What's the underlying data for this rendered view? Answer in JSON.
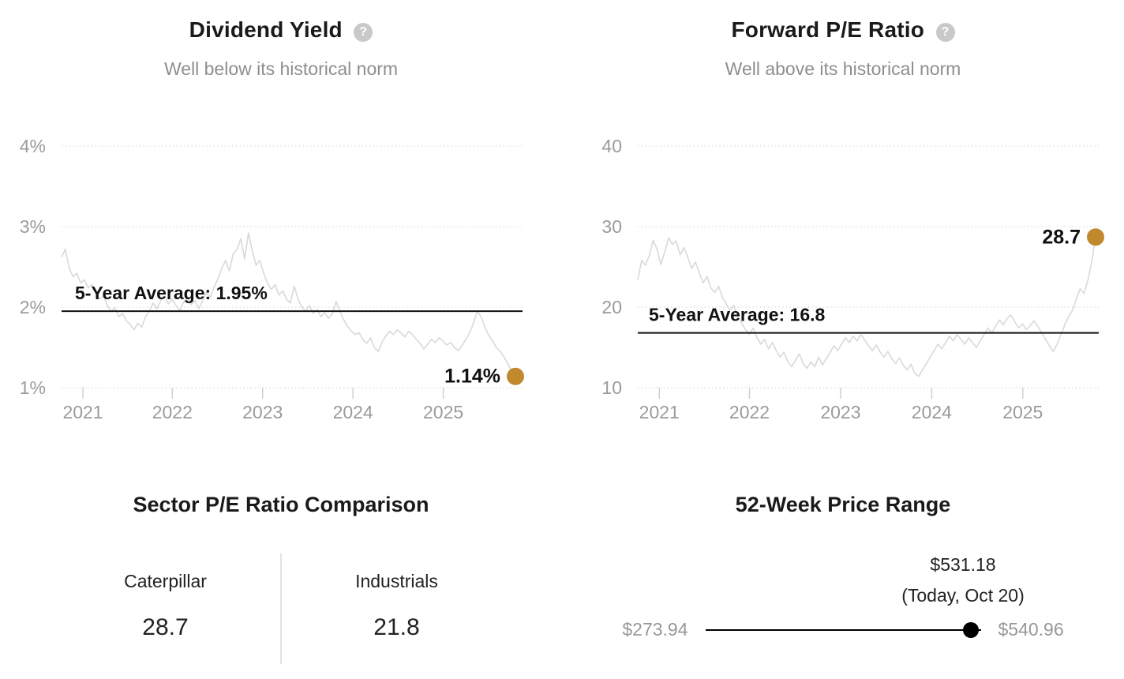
{
  "colors": {
    "accent_gold": "#c0892e",
    "title_text": "#1a1a1a",
    "muted_text": "#8e8e8e",
    "axis_text": "#9b9b9b",
    "sparkline": "#d9d9d9",
    "grid_dots": "#d6d6d6",
    "average_line": "#111111",
    "range_line": "#000000"
  },
  "icons": {
    "question_mark": "?"
  },
  "chart_data": [
    {
      "type": "line",
      "title": "Dividend Yield",
      "subtitle": "Well below its historical norm",
      "help_icon": "question-mark-icon",
      "unit": "percent",
      "x_range_dates": [
        "2020-10",
        "2025-10-20"
      ],
      "x_tick_labels": [
        "2021",
        "2022",
        "2023",
        "2024",
        "2025"
      ],
      "y_tick_labels": [
        "4%",
        "3%",
        "2%",
        "1%"
      ],
      "y_tick_values": [
        4,
        3,
        2,
        1
      ],
      "ylim": [
        0.4,
        4.3
      ],
      "grid": "dotted-horizontal",
      "legend_position": "none",
      "average": {
        "label": "5-Year Average: 1.95%",
        "value": 1.95
      },
      "latest": {
        "label": "1.14%",
        "value": 1.14
      },
      "values": [
        2.62,
        2.72,
        2.48,
        2.38,
        2.42,
        2.3,
        2.34,
        2.24,
        2.28,
        2.18,
        2.1,
        2.14,
        2.02,
        1.95,
        1.99,
        1.88,
        1.92,
        1.83,
        1.78,
        1.72,
        1.8,
        1.75,
        1.88,
        1.95,
        2.05,
        1.98,
        2.08,
        2.14,
        2.04,
        2.1,
        2.02,
        1.96,
        2.06,
        2.12,
        2.03,
        2.08,
        1.98,
        2.08,
        2.18,
        2.12,
        2.25,
        2.35,
        2.48,
        2.58,
        2.45,
        2.66,
        2.72,
        2.85,
        2.6,
        2.92,
        2.7,
        2.52,
        2.58,
        2.42,
        2.3,
        2.22,
        2.28,
        2.15,
        2.2,
        2.1,
        2.05,
        2.26,
        2.1,
        2.0,
        1.95,
        2.02,
        1.92,
        1.97,
        1.88,
        1.93,
        1.86,
        1.92,
        2.07,
        1.95,
        1.84,
        1.76,
        1.7,
        1.66,
        1.68,
        1.6,
        1.55,
        1.62,
        1.5,
        1.45,
        1.56,
        1.64,
        1.7,
        1.66,
        1.72,
        1.68,
        1.63,
        1.7,
        1.66,
        1.6,
        1.55,
        1.48,
        1.54,
        1.6,
        1.56,
        1.62,
        1.58,
        1.53,
        1.56,
        1.5,
        1.46,
        1.52,
        1.6,
        1.68,
        1.8,
        1.95,
        1.88,
        1.75,
        1.65,
        1.58,
        1.5,
        1.45,
        1.38,
        1.3,
        1.2,
        1.14
      ]
    },
    {
      "type": "line",
      "title": "Forward P/E Ratio",
      "subtitle": "Well above its historical norm",
      "help_icon": "question-mark-icon",
      "unit": "ratio",
      "x_range_dates": [
        "2020-10",
        "2025-10-20"
      ],
      "x_tick_labels": [
        "2021",
        "2022",
        "2023",
        "2024",
        "2025"
      ],
      "y_tick_labels": [
        "40",
        "30",
        "20",
        "10"
      ],
      "y_tick_values": [
        40,
        30,
        20,
        10
      ],
      "ylim": [
        4,
        42
      ],
      "grid": "dotted-horizontal",
      "legend_position": "none",
      "average": {
        "label": "5-Year Average: 16.8",
        "value": 16.8
      },
      "latest": {
        "label": "28.7",
        "value": 28.7
      },
      "values": [
        23.4,
        25.8,
        25.2,
        26.4,
        28.3,
        27.2,
        25.3,
        26.8,
        28.6,
        27.8,
        28.2,
        26.5,
        27.4,
        26.2,
        24.8,
        25.6,
        24.2,
        23.0,
        23.8,
        22.4,
        21.8,
        22.6,
        21.2,
        20.4,
        19.6,
        20.2,
        18.8,
        18.0,
        17.2,
        16.6,
        17.4,
        16.2,
        15.4,
        16.0,
        14.8,
        15.6,
        14.6,
        13.8,
        14.4,
        13.2,
        12.6,
        13.4,
        14.2,
        13.0,
        12.4,
        13.2,
        12.6,
        13.8,
        12.8,
        13.6,
        14.4,
        15.2,
        14.6,
        15.4,
        16.2,
        15.6,
        16.4,
        15.8,
        16.6,
        15.9,
        15.2,
        14.6,
        15.3,
        14.4,
        13.8,
        14.5,
        13.6,
        13.0,
        13.7,
        12.8,
        12.2,
        12.9,
        11.8,
        11.4,
        12.2,
        13.0,
        13.8,
        14.6,
        15.4,
        14.8,
        15.6,
        16.4,
        15.8,
        16.6,
        16.0,
        15.4,
        16.2,
        15.6,
        15.0,
        15.8,
        16.6,
        17.4,
        16.8,
        17.6,
        18.4,
        17.8,
        18.6,
        19.0,
        18.2,
        17.4,
        17.9,
        17.2,
        17.7,
        18.3,
        17.6,
        16.8,
        16.0,
        15.2,
        14.5,
        15.4,
        16.6,
        17.8,
        18.8,
        19.6,
        21.0,
        22.3,
        21.7,
        23.4,
        25.6,
        28.7
      ]
    }
  ],
  "sector_comparison": {
    "title": "Sector P/E Ratio Comparison",
    "columns": [
      {
        "label": "Caterpillar",
        "value": "28.7"
      },
      {
        "label": "Industrials",
        "value": "21.8"
      }
    ]
  },
  "price_range": {
    "title": "52-Week Price Range",
    "current_label": "$531.18",
    "current_sub_label": "(Today, Oct 20)",
    "low_label": "$273.94",
    "high_label": "$540.96",
    "low": 273.94,
    "high": 540.96,
    "current": 531.18
  }
}
